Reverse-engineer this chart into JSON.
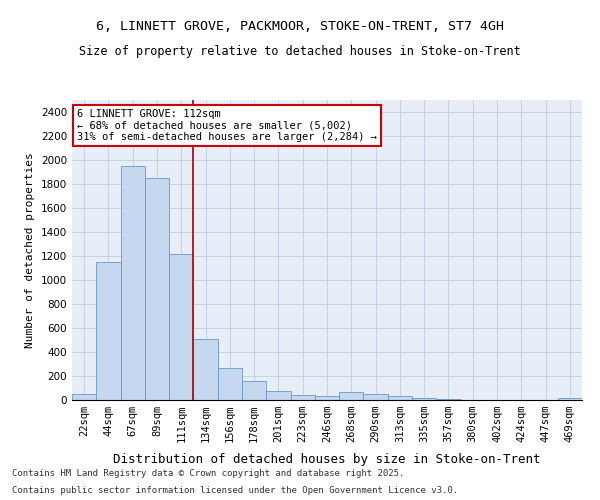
{
  "title1": "6, LINNETT GROVE, PACKMOOR, STOKE-ON-TRENT, ST7 4GH",
  "title2": "Size of property relative to detached houses in Stoke-on-Trent",
  "xlabel": "Distribution of detached houses by size in Stoke-on-Trent",
  "ylabel": "Number of detached properties",
  "property_label": "6 LINNETT GROVE: 112sqm",
  "annotation_line1": "← 68% of detached houses are smaller (5,002)",
  "annotation_line2": "31% of semi-detached houses are larger (2,284) →",
  "bar_color": "#c5d8f0",
  "bar_edge_color": "#6699cc",
  "marker_line_color": "#aa0000",
  "annotation_box_color": "#ffffff",
  "annotation_box_edge": "#cc0000",
  "background_color": "#e8eef8",
  "grid_color": "#c0cce0",
  "categories": [
    "22sqm",
    "44sqm",
    "67sqm",
    "89sqm",
    "111sqm",
    "134sqm",
    "156sqm",
    "178sqm",
    "201sqm",
    "223sqm",
    "246sqm",
    "268sqm",
    "290sqm",
    "313sqm",
    "335sqm",
    "357sqm",
    "380sqm",
    "402sqm",
    "424sqm",
    "447sqm",
    "469sqm"
  ],
  "values": [
    50,
    1150,
    1950,
    1850,
    1220,
    510,
    265,
    155,
    75,
    45,
    30,
    70,
    50,
    35,
    15,
    5,
    2,
    1,
    1,
    1,
    20
  ],
  "ylim": [
    0,
    2500
  ],
  "yticks": [
    0,
    200,
    400,
    600,
    800,
    1000,
    1200,
    1400,
    1600,
    1800,
    2000,
    2200,
    2400
  ],
  "footer1": "Contains HM Land Registry data © Crown copyright and database right 2025.",
  "footer2": "Contains public sector information licensed under the Open Government Licence v3.0.",
  "marker_bin_index": 4,
  "title1_fontsize": 9.5,
  "title2_fontsize": 8.5,
  "ylabel_fontsize": 8,
  "xlabel_fontsize": 9,
  "tick_fontsize": 7.5,
  "annotation_fontsize": 7.5,
  "footer_fontsize": 6.5
}
